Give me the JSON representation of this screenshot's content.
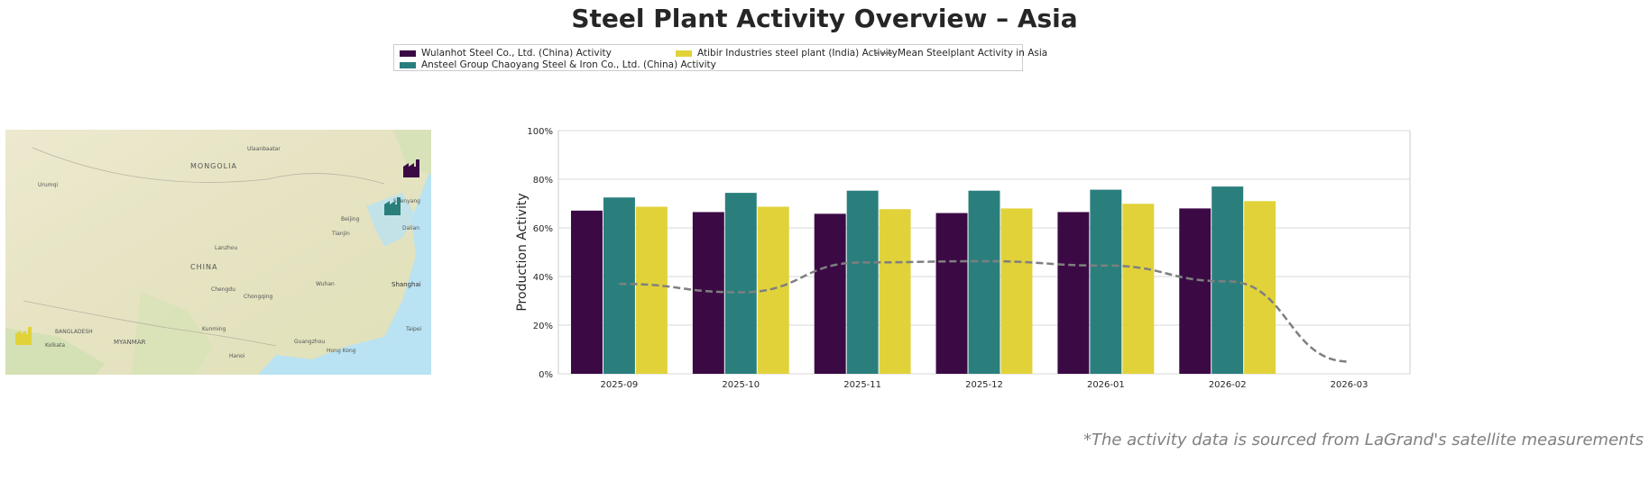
{
  "title": "Steel Plant Activity Overview – Asia",
  "legend": [
    {
      "label": "Wulanhot Steel Co., Ltd. (China) Activity",
      "color": "#3b0a45"
    },
    {
      "label": "Ansteel Group Chaoyang Steel & Iron Co., Ltd. (China) Activity",
      "color": "#2a7f7d"
    },
    {
      "label": "Atibir Industries steel plant (India) Activity",
      "color": "#e1d23a"
    },
    {
      "label": "Mean Steelplant Activity in Asia",
      "color": "#7f7f7f",
      "style": "dashed"
    }
  ],
  "map": {
    "labels": [
      "MONGOLIA",
      "CHINA",
      "MYANMAR",
      "BANGLADESH",
      "Ulaanbaatar",
      "Urumqi",
      "Beijing",
      "Tianjin",
      "Shenyang",
      "Dalian",
      "Lanzhou",
      "Chengdu",
      "Chongqing",
      "Wuhan",
      "Shanghai",
      "Kunming",
      "Guangzhou",
      "Hong Kong",
      "Kolkata",
      "Hanoi",
      "Taipei"
    ],
    "markers": [
      {
        "name": "Wulanhot",
        "color": "#3b0a45"
      },
      {
        "name": "Chaoyang",
        "color": "#2a7f7d"
      },
      {
        "name": "Atibir",
        "color": "#e1d23a"
      }
    ]
  },
  "chart_data": {
    "type": "bar",
    "title": "",
    "xlabel": "",
    "ylabel": "Production Activity",
    "ylim": [
      0,
      100
    ],
    "yticks": [
      "0%",
      "20%",
      "40%",
      "60%",
      "80%",
      "100%"
    ],
    "categories": [
      "2025-09",
      "2025-10",
      "2025-11",
      "2025-12",
      "2026-01",
      "2026-02",
      "2026-03"
    ],
    "grid": true,
    "series": [
      {
        "name": "Wulanhot Steel Co., Ltd. (China) Activity",
        "type": "bar",
        "color": "#3b0a45",
        "values": [
          67.1,
          66.5,
          65.8,
          66.1,
          66.5,
          68.0,
          null
        ]
      },
      {
        "name": "Ansteel Group Chaoyang Steel & Iron Co., Ltd. (China) Activity",
        "type": "bar",
        "color": "#2a7f7d",
        "values": [
          72.5,
          74.4,
          75.3,
          75.3,
          75.7,
          77.0,
          null
        ]
      },
      {
        "name": "Atibir Industries steel plant (India) Activity",
        "type": "bar",
        "color": "#e1d23a",
        "values": [
          68.7,
          68.7,
          67.7,
          68.0,
          69.9,
          71.0,
          null
        ]
      },
      {
        "name": "Mean Steelplant Activity in Asia",
        "type": "line",
        "style": "dashed",
        "color": "#7f7f7f",
        "values": [
          37.0,
          33.5,
          45.8,
          46.3,
          44.5,
          38.0,
          5.0
        ]
      }
    ]
  },
  "footnote": "*The activity data is sourced from LaGrand's satellite measurements"
}
